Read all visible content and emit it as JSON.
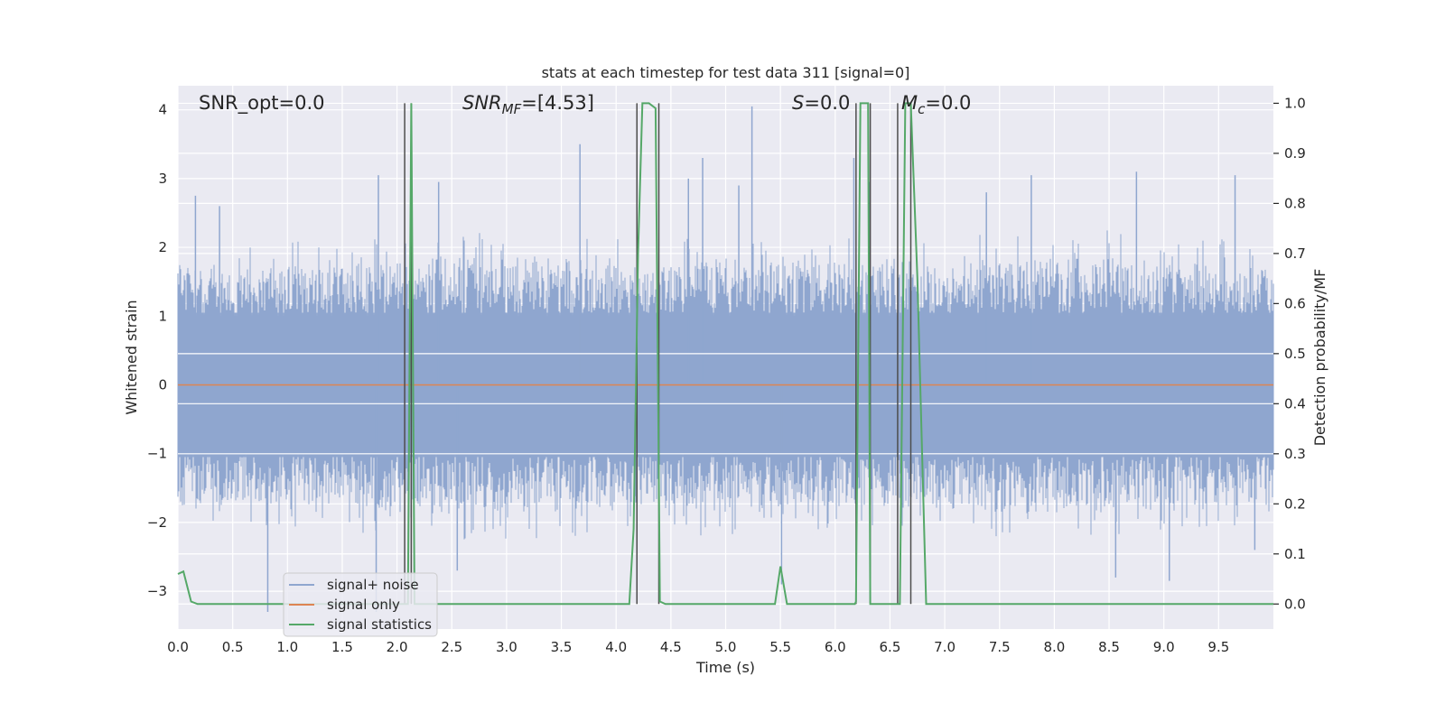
{
  "chart_data": {
    "type": "line",
    "title": "stats at each timestep for test data 311 [signal=0]",
    "xlabel": "Time (s)",
    "ylabel": "Whitened strain",
    "ylabel_right": "Detection probability/MF",
    "xlim": [
      0.0,
      10.0
    ],
    "ylim": [
      -3.55,
      4.35
    ],
    "ylim_right": [
      -0.05,
      1.035
    ],
    "x_ticks": [
      "0.0",
      "0.5",
      "1.0",
      "1.5",
      "2.0",
      "2.5",
      "3.0",
      "3.5",
      "4.0",
      "4.5",
      "5.0",
      "5.5",
      "6.0",
      "6.5",
      "7.0",
      "7.5",
      "8.0",
      "8.5",
      "9.0",
      "9.5"
    ],
    "y_ticks": [
      "4",
      "3",
      "2",
      "1",
      "0",
      "−1",
      "−2",
      "−3"
    ],
    "y_ticks_right": [
      "1.0",
      "0.9",
      "0.8",
      "0.7",
      "0.6",
      "0.5",
      "0.4",
      "0.3",
      "0.2",
      "0.1",
      "0.0"
    ],
    "annotations": {
      "snr_opt": "SNR_opt=0.0",
      "snr_mf_base": "SNR",
      "snr_mf_sub": "MF",
      "snr_mf_value": "=[4.53]",
      "s_base": "S",
      "s_value": "=0.0",
      "mc_base": "M",
      "mc_sub": "c",
      "mc_value": "=0.0"
    },
    "legend": {
      "position": "lower-left",
      "entries": [
        "signal+ noise",
        "signal only",
        "signal statistics"
      ]
    },
    "grid": true,
    "colors": {
      "background": "#eaeaf2",
      "grid": "#ffffff",
      "noise": "#8fa6cf",
      "signal": "#dd8452",
      "stats": "#55a868",
      "trigger": "#4d4d4d"
    },
    "series": [
      {
        "name": "signal+ noise",
        "description_only": false,
        "envelope": {
          "x": [
            0.0,
            0.5,
            1.0,
            1.5,
            2.0,
            2.5,
            3.0,
            3.5,
            4.0,
            4.5,
            5.0,
            5.5,
            6.0,
            6.5,
            7.0,
            7.5,
            8.0,
            8.5,
            9.0,
            9.5,
            10.0
          ],
          "y": [
            1.9,
            1.8,
            1.9,
            1.9,
            2.0,
            2.0,
            2.0,
            2.0,
            1.9,
            1.9,
            2.0,
            1.9,
            1.9,
            2.0,
            1.9,
            2.0,
            2.0,
            2.0,
            1.9,
            1.9,
            1.8
          ]
        },
        "peaks": [
          {
            "x": 0.16,
            "y": 2.75
          },
          {
            "x": 0.38,
            "y": 2.6
          },
          {
            "x": 0.82,
            "y": -3.3
          },
          {
            "x": 1.83,
            "y": 3.05
          },
          {
            "x": 1.81,
            "y": -3.3
          },
          {
            "x": 2.38,
            "y": 2.95
          },
          {
            "x": 2.55,
            "y": -2.7
          },
          {
            "x": 3.67,
            "y": 3.5
          },
          {
            "x": 4.66,
            "y": 3.0
          },
          {
            "x": 4.79,
            "y": 3.3
          },
          {
            "x": 5.24,
            "y": 4.05
          },
          {
            "x": 5.12,
            "y": 2.9
          },
          {
            "x": 5.51,
            "y": -2.9
          },
          {
            "x": 6.17,
            "y": 3.3
          },
          {
            "x": 6.31,
            "y": 2.95
          },
          {
            "x": 7.38,
            "y": 2.8
          },
          {
            "x": 7.79,
            "y": 3.05
          },
          {
            "x": 8.75,
            "y": 3.1
          },
          {
            "x": 8.56,
            "y": -2.8
          },
          {
            "x": 9.05,
            "y": -2.85
          },
          {
            "x": 9.65,
            "y": 3.05
          },
          {
            "x": 9.83,
            "y": -2.4
          }
        ]
      },
      {
        "name": "signal only",
        "x": [
          0.0,
          10.0
        ],
        "y": [
          0.0,
          0.0
        ]
      },
      {
        "name": "signal statistics",
        "axis": "right",
        "x": [
          0.0,
          0.05,
          0.12,
          0.18,
          2.05,
          2.06,
          2.1,
          2.13,
          2.16,
          2.17,
          4.12,
          4.16,
          4.2,
          4.24,
          4.3,
          4.36,
          4.4,
          4.45,
          5.45,
          5.5,
          5.56,
          6.18,
          6.19,
          6.23,
          6.3,
          6.32,
          6.35,
          6.57,
          6.59,
          6.64,
          6.69,
          6.75,
          6.83,
          10.0
        ],
        "y": [
          0.06,
          0.065,
          0.005,
          0.0,
          0.0,
          0.0,
          0.0,
          1.0,
          0.0,
          0.0,
          0.0,
          0.15,
          0.7,
          1.0,
          1.0,
          0.99,
          0.005,
          0.0,
          0.0,
          0.075,
          0.0,
          0.0,
          0.005,
          1.0,
          1.0,
          0.0,
          0.0,
          0.0,
          0.0,
          1.0,
          1.0,
          0.65,
          0.0,
          0.0
        ]
      }
    ],
    "trigger_lines_x": [
      2.07,
      2.13,
      4.19,
      4.39,
      6.19,
      6.32,
      6.57,
      6.69
    ]
  }
}
